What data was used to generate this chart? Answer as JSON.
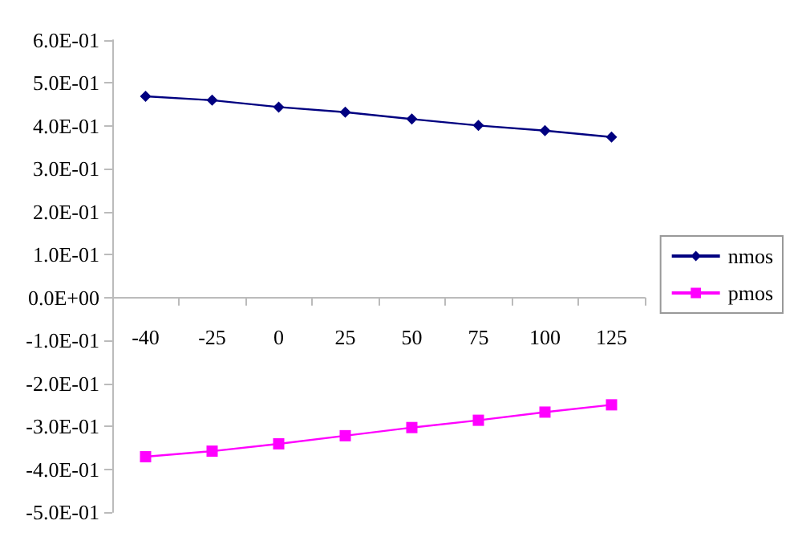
{
  "chart_data": {
    "type": "line",
    "categories": [
      "-40",
      "-25",
      "0",
      "25",
      "50",
      "75",
      "100",
      "125"
    ],
    "series": [
      {
        "name": "nmos",
        "color": "#000080",
        "marker": "diamond",
        "values": [
          0.469,
          0.46,
          0.444,
          0.432,
          0.416,
          0.401,
          0.389,
          0.374
        ]
      },
      {
        "name": "pmos",
        "color": "#ff00ff",
        "marker": "square",
        "values": [
          -0.371,
          -0.358,
          -0.341,
          -0.322,
          -0.303,
          -0.286,
          -0.267,
          -0.25
        ]
      }
    ],
    "ylim": [
      -0.5,
      0.6
    ],
    "yticks": [
      {
        "value": -0.5,
        "label": "-5.0E-01"
      },
      {
        "value": -0.4,
        "label": "-4.0E-01"
      },
      {
        "value": -0.3,
        "label": "-3.0E-01"
      },
      {
        "value": -0.2,
        "label": "-2.0E-01"
      },
      {
        "value": -0.1,
        "label": "-1.0E-01"
      },
      {
        "value": 0,
        "label": "0.0E+00"
      },
      {
        "value": 0.1,
        "label": "1.0E-01"
      },
      {
        "value": 0.2,
        "label": "2.0E-01"
      },
      {
        "value": 0.3,
        "label": "3.0E-01"
      },
      {
        "value": 0.4,
        "label": "4.0E-01"
      },
      {
        "value": 0.5,
        "label": "5.0E-01"
      },
      {
        "value": 0.6,
        "label": "6.0E-01"
      }
    ],
    "grid": false,
    "legend": "right"
  }
}
